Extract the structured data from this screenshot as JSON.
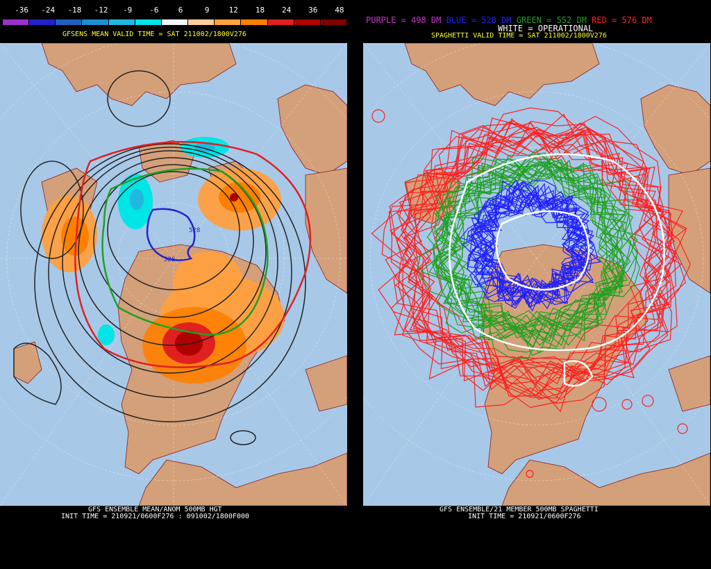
{
  "left_panel": {
    "scale_labels": [
      "-36",
      "-24",
      "-18",
      "-12",
      "-9",
      "-6",
      "6",
      "9",
      "12",
      "18",
      "24",
      "36",
      "48"
    ],
    "scale_colors": [
      "#9932cc",
      "#2222cc",
      "#1f5fbf",
      "#1c8fd0",
      "#20b8e0",
      "#00e5e5",
      "#f5f5f5",
      "#ffcc99",
      "#ffa040",
      "#ff7f00",
      "#e02020",
      "#b00000",
      "#800000"
    ],
    "valid_time": "GFSENS MEAN VALID TIME = SAT 211002/1800V276",
    "contour_label_528_a": "528",
    "contour_label_528_b": "528",
    "footer_line1": "GFS ENSEMBLE MEAN/ANOM 500MB HGT",
    "footer_line2": "INIT TIME = 210921/0600F276 : 091002/1800F000"
  },
  "right_panel": {
    "legend_purple": "PURPLE = 498 DM",
    "legend_blue": "BLUE = 528 DM",
    "legend_green": "GREEN = 552 DM",
    "legend_red": "RED = 576 DM",
    "legend_white": "WHITE = OPERATIONAL",
    "valid_time": "SPAGHETTI VALID TIME = SAT 211002/1800V276",
    "footer_line1": "GFS ENSEMBLE/21 MEMBER 500MB SPAGHETTI",
    "footer_line2": "INIT TIME = 210921/0600F276"
  },
  "colors": {
    "ocean": "#a8c8e8",
    "land": "#d4a07a",
    "border": "#8b1a1a",
    "purple": "#cc33cc",
    "blue": "#2020ff",
    "green": "#20a020",
    "red": "#ff2020",
    "yellow": "#ffff33"
  }
}
